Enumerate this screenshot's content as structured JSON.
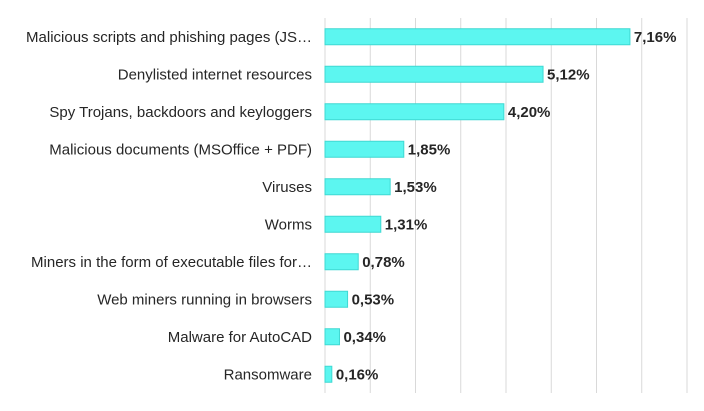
{
  "chart_data": {
    "type": "bar",
    "orientation": "horizontal",
    "categories": [
      "Malicious scripts and phishing pages (JS…",
      "Denylisted internet resources",
      "Spy Trojans, backdoors and keyloggers",
      "Malicious documents (MSOffice + PDF)",
      "Viruses",
      "Worms",
      "Miners in the form of executable files for…",
      "Web miners running in browsers",
      "Malware for AutoCAD",
      "Ransomware"
    ],
    "values": [
      7.16,
      5.12,
      4.2,
      1.85,
      1.53,
      1.31,
      0.78,
      0.53,
      0.34,
      0.16
    ],
    "value_labels": [
      "7,16%",
      "5,12%",
      "4,20%",
      "1,85%",
      "1,53%",
      "1,31%",
      "0,78%",
      "0,53%",
      "0,34%",
      "0,16%"
    ],
    "xlim": [
      0,
      8.5
    ],
    "grid": true,
    "bar_color": "#5cf6f0",
    "bar_border_color": "#3fd8d2"
  }
}
